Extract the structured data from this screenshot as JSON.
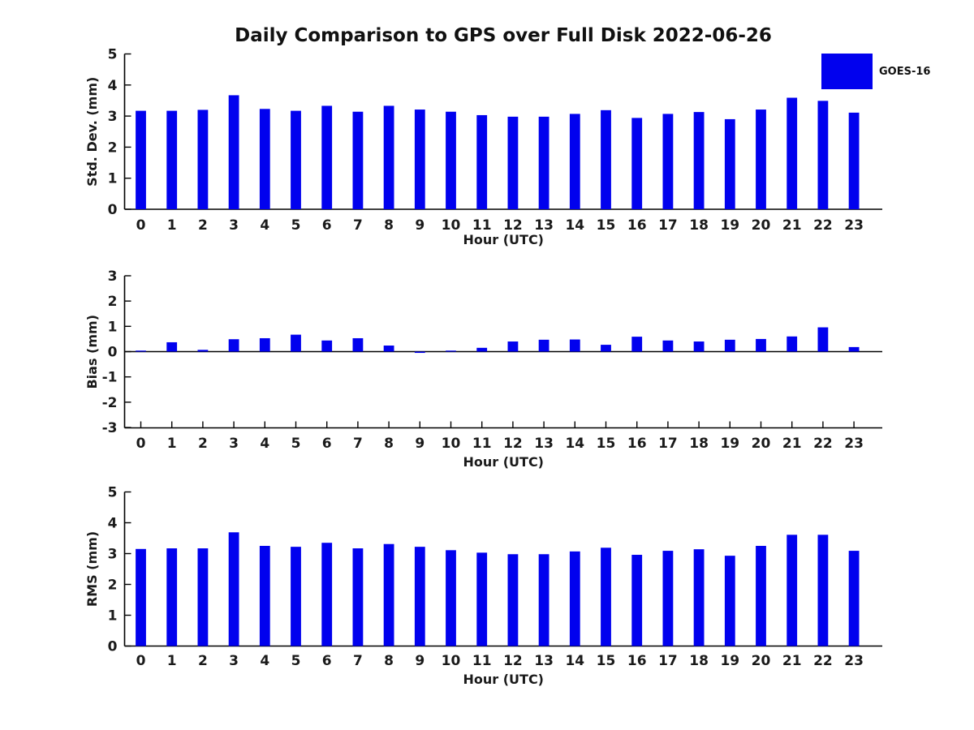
{
  "page": {
    "title": "Daily Comparison to GPS over Full Disk 2022-06-26"
  },
  "legend": {
    "label": "GOES-16",
    "color": "#0101ee"
  },
  "colors": {
    "bar": "#0101ee",
    "axis": "#000000",
    "text": "#1a1a1a"
  },
  "chart_data": [
    {
      "type": "bar",
      "name": "stddev",
      "series_name": "GOES-16",
      "ylabel": "Std. Dev. (mm)",
      "xlabel": "Hour (UTC)",
      "ylim": [
        0,
        5
      ],
      "yticks": [
        0,
        1,
        2,
        3,
        4,
        5
      ],
      "grid": false,
      "legend_position": "top-right",
      "categories": [
        "0",
        "1",
        "2",
        "3",
        "4",
        "5",
        "6",
        "7",
        "8",
        "9",
        "10",
        "11",
        "12",
        "13",
        "14",
        "15",
        "16",
        "17",
        "18",
        "19",
        "20",
        "21",
        "22",
        "23"
      ],
      "values": [
        3.17,
        3.17,
        3.2,
        3.67,
        3.23,
        3.17,
        3.33,
        3.14,
        3.33,
        3.21,
        3.14,
        3.03,
        2.98,
        2.98,
        3.07,
        3.19,
        2.94,
        3.07,
        3.13,
        2.9,
        3.21,
        3.59,
        3.49,
        3.11
      ]
    },
    {
      "type": "bar",
      "name": "bias",
      "series_name": "GOES-16",
      "ylabel": "Bias (mm)",
      "xlabel": "Hour (UTC)",
      "ylim": [
        -3,
        3
      ],
      "yticks": [
        -3,
        -2,
        -1,
        0,
        1,
        2,
        3
      ],
      "grid": false,
      "categories": [
        "0",
        "1",
        "2",
        "3",
        "4",
        "5",
        "6",
        "7",
        "8",
        "9",
        "10",
        "11",
        "12",
        "13",
        "14",
        "15",
        "16",
        "17",
        "18",
        "19",
        "20",
        "21",
        "22",
        "23"
      ],
      "values": [
        0.04,
        0.37,
        0.07,
        0.49,
        0.53,
        0.67,
        0.44,
        0.53,
        0.24,
        -0.05,
        0.04,
        0.15,
        0.4,
        0.47,
        0.48,
        0.27,
        0.59,
        0.44,
        0.4,
        0.47,
        0.5,
        0.6,
        0.96,
        0.18
      ]
    },
    {
      "type": "bar",
      "name": "rms",
      "series_name": "GOES-16",
      "ylabel": "RMS (mm)",
      "xlabel": "Hour (UTC)",
      "ylim": [
        0,
        5
      ],
      "yticks": [
        0,
        1,
        2,
        3,
        4,
        5
      ],
      "grid": false,
      "categories": [
        "0",
        "1",
        "2",
        "3",
        "4",
        "5",
        "6",
        "7",
        "8",
        "9",
        "10",
        "11",
        "12",
        "13",
        "14",
        "15",
        "16",
        "17",
        "18",
        "19",
        "20",
        "21",
        "22",
        "23"
      ],
      "values": [
        3.15,
        3.17,
        3.17,
        3.69,
        3.25,
        3.22,
        3.35,
        3.17,
        3.31,
        3.22,
        3.11,
        3.03,
        2.98,
        2.98,
        3.07,
        3.19,
        2.96,
        3.09,
        3.14,
        2.93,
        3.25,
        3.61,
        3.61,
        3.09
      ]
    }
  ]
}
